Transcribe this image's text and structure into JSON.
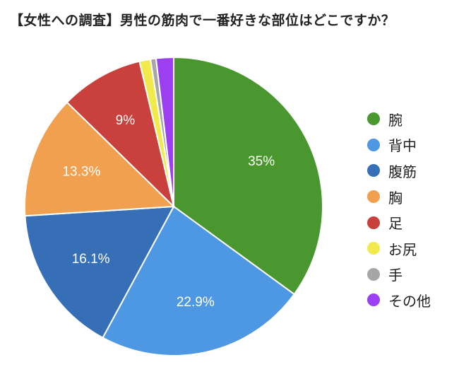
{
  "chart_data": {
    "type": "pie",
    "title": "【女性への調査】男性の筋肉で一番好きな部位はどこですか？",
    "legend_position": "right",
    "slices": [
      {
        "label": "腕",
        "value": 35.0,
        "display": "35%",
        "color": "#4a962f"
      },
      {
        "label": "背中",
        "value": 22.9,
        "display": "22.9%",
        "color": "#4d97e3"
      },
      {
        "label": "腹筋",
        "value": 16.1,
        "display": "16.1%",
        "color": "#376fb7"
      },
      {
        "label": "胸",
        "value": 13.3,
        "display": "13.3%",
        "color": "#f0a04f"
      },
      {
        "label": "足",
        "value": 9.0,
        "display": "9%",
        "color": "#c8413c"
      },
      {
        "label": "お尻",
        "value": 1.2,
        "display": "",
        "color": "#f1ea4d"
      },
      {
        "label": "手",
        "value": 0.6,
        "display": "",
        "color": "#a6a6a6"
      },
      {
        "label": "その他",
        "value": 1.9,
        "display": "",
        "color": "#9b3ff0"
      }
    ]
  }
}
